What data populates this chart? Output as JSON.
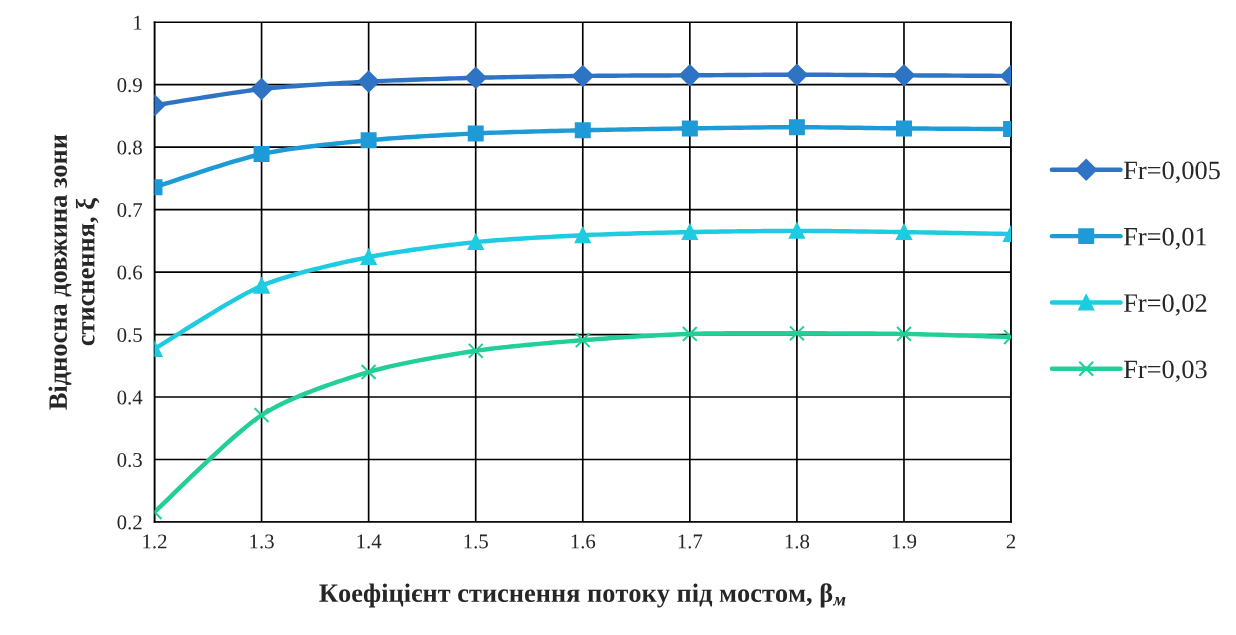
{
  "chart_data": {
    "type": "line",
    "x": [
      1.2,
      1.3,
      1.4,
      1.5,
      1.6,
      1.7,
      1.8,
      1.9,
      2
    ],
    "xlabel": "Коефіцієнт стиснення потоку під мостом, β$_{м}$",
    "ylabel": "Відносна довжина зони\nстиснення, ξ",
    "xlim": [
      1.2,
      2
    ],
    "xticks": [
      1.2,
      1.3,
      1.4,
      1.5,
      1.6,
      1.7,
      1.8,
      1.9,
      2
    ],
    "ylim": [
      0.2,
      1
    ],
    "yticks": [
      0.2,
      0.3,
      0.4,
      0.5,
      0.6,
      0.7,
      0.8,
      0.9,
      1
    ],
    "grid": true,
    "legend": "right",
    "series": [
      {
        "name": "Fr=0,005",
        "color": "#2f74c4",
        "marker": "diamond",
        "values": [
          0.867,
          0.893,
          0.905,
          0.911,
          0.914,
          0.915,
          0.916,
          0.915,
          0.914
        ]
      },
      {
        "name": "Fr=0,01",
        "color": "#1e9bd7",
        "marker": "square",
        "values": [
          0.736,
          0.789,
          0.811,
          0.822,
          0.827,
          0.83,
          0.832,
          0.83,
          0.829
        ]
      },
      {
        "name": "Fr=0,02",
        "color": "#1fcbe0",
        "marker": "triangle",
        "values": [
          0.477,
          0.578,
          0.624,
          0.648,
          0.659,
          0.664,
          0.666,
          0.664,
          0.661
        ]
      },
      {
        "name": "Fr=0,03",
        "color": "#22cf98",
        "marker": "cross",
        "values": [
          0.216,
          0.371,
          0.44,
          0.474,
          0.491,
          0.501,
          0.502,
          0.501,
          0.496
        ]
      }
    ]
  }
}
